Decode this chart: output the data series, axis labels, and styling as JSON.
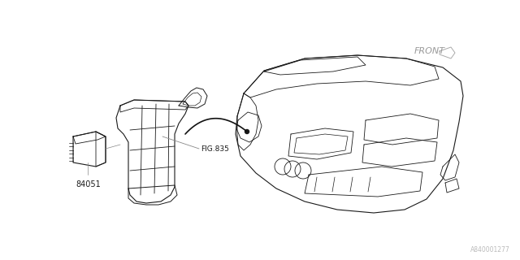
{
  "bg_color": "#ffffff",
  "line_color": "#1a1a1a",
  "gray_color": "#aaaaaa",
  "label_84051": "84051",
  "label_fig835": "FIG.835",
  "label_front": "FRONT",
  "label_ref": "A840001277",
  "lw": 0.7
}
